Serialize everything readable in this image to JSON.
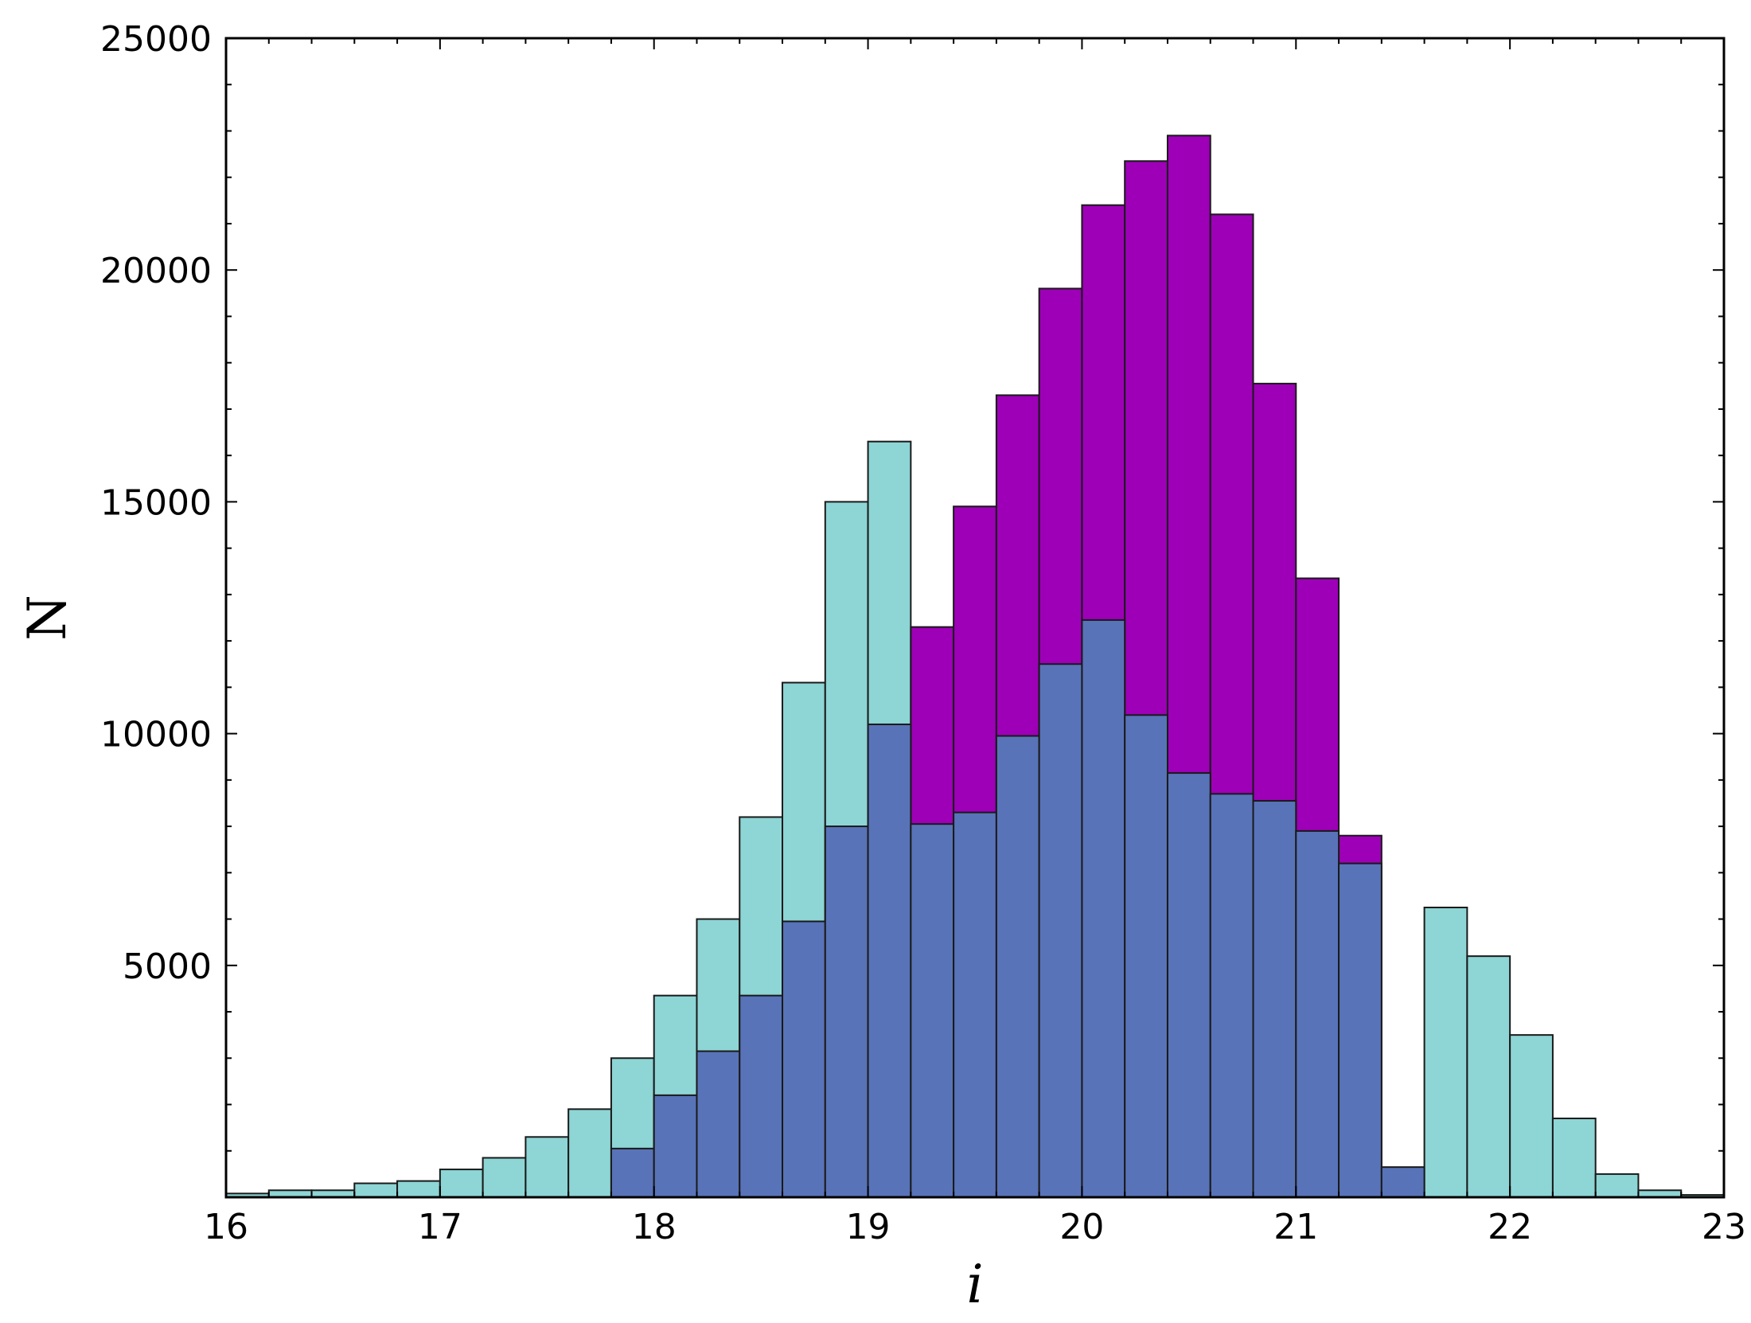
{
  "chart_data": {
    "type": "bar",
    "xlabel": "i",
    "ylabel": "N",
    "xlim": [
      16,
      23
    ],
    "ylim": [
      0,
      25000
    ],
    "x_ticks": [
      "16",
      "17",
      "18",
      "19",
      "20",
      "21",
      "22",
      "23"
    ],
    "y_ticks": [
      "5000",
      "10000",
      "15000",
      "20000",
      "25000"
    ],
    "bin_edges": [
      16.0,
      16.2,
      16.4,
      16.6,
      16.8,
      17.0,
      17.2,
      17.4,
      17.6,
      17.8,
      18.0,
      18.2,
      18.4,
      18.6,
      18.8,
      19.0,
      19.2,
      19.4,
      19.6,
      19.8,
      20.0,
      20.2,
      20.4,
      20.6,
      20.8,
      21.0,
      21.2,
      21.4,
      21.6,
      21.8,
      22.0,
      22.2,
      22.4,
      22.6,
      22.8,
      23.0
    ],
    "grid": false,
    "series": [
      {
        "color": "#8ed5d5",
        "values": [
          80,
          150,
          150,
          300,
          350,
          600,
          850,
          1300,
          1900,
          3000,
          4350,
          6000,
          8200,
          11100,
          15000,
          16300,
          0,
          0,
          0,
          0,
          0,
          0,
          0,
          0,
          0,
          0,
          0,
          0,
          6250,
          5200,
          3500,
          1700,
          500,
          150,
          50
        ]
      },
      {
        "color": "#9d00b7",
        "values": [
          0,
          0,
          0,
          0,
          0,
          0,
          0,
          0,
          0,
          0,
          0,
          0,
          0,
          0,
          0,
          0,
          12300,
          14900,
          17300,
          19600,
          21400,
          22350,
          22900,
          21200,
          17550,
          13350,
          7800,
          0,
          0,
          0,
          0,
          0,
          0,
          0,
          0
        ]
      },
      {
        "color": "#5873b8",
        "values": [
          0,
          0,
          0,
          0,
          0,
          0,
          0,
          0,
          0,
          1050,
          2200,
          3150,
          4350,
          5950,
          8000,
          10200,
          8050,
          8300,
          9950,
          11500,
          12450,
          10400,
          9150,
          8700,
          8550,
          7900,
          7200,
          650,
          0,
          0,
          0,
          0,
          0,
          0,
          0
        ]
      }
    ]
  }
}
